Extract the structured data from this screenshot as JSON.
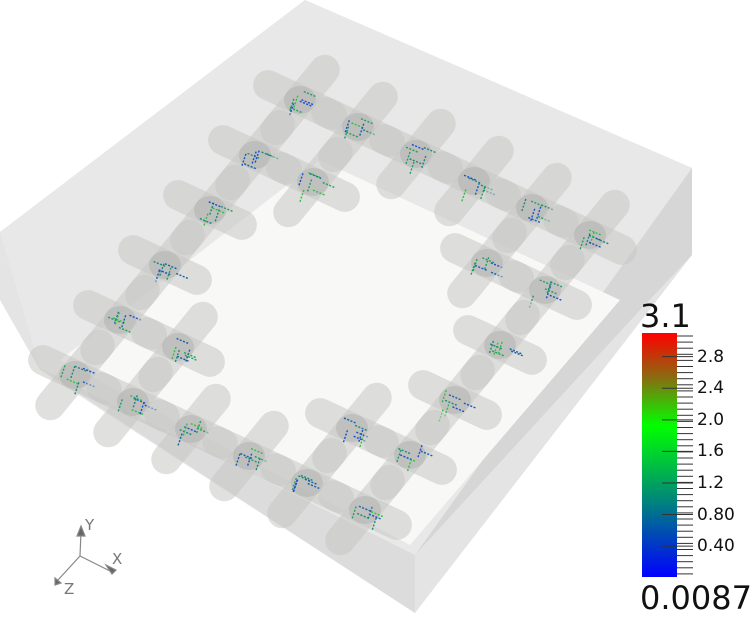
{
  "scene": {
    "background": "#ffffff",
    "box_color": "#e4e4e4",
    "floor_color": "#f8f8f6",
    "tube_color": "#c8c8c6"
  },
  "colorbar": {
    "max_label": "3.1",
    "min_label": "0.0087",
    "range": [
      0.0087,
      3.1
    ],
    "ticks": [
      "2.8",
      "2.4",
      "2.0",
      "1.6",
      "1.2",
      "0.80",
      "0.40"
    ],
    "tick_values": [
      2.8,
      2.4,
      2.0,
      1.6,
      1.2,
      0.8,
      0.4
    ],
    "colors": [
      "#0000ff",
      "#008080",
      "#00ff00",
      "#8b6a10",
      "#ff0000"
    ]
  },
  "axes": {
    "x": "X",
    "y": "Y",
    "z": "Z"
  }
}
